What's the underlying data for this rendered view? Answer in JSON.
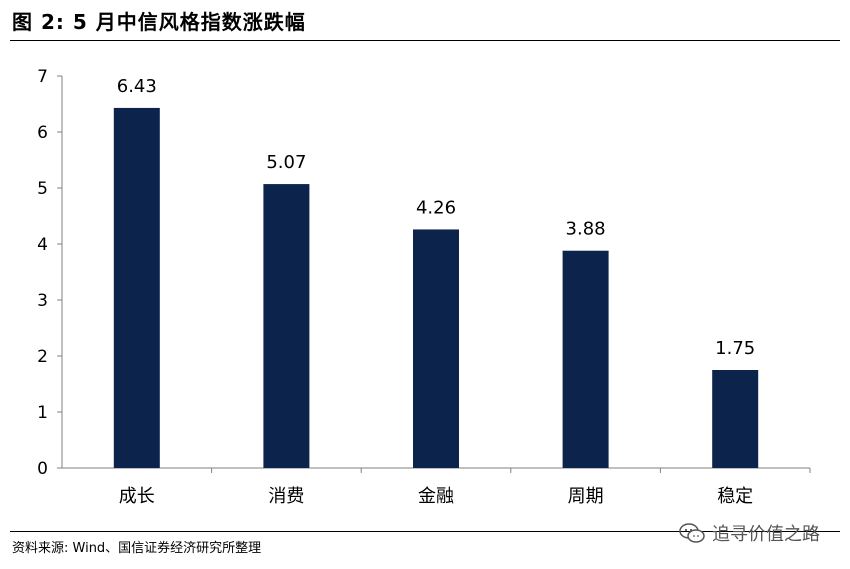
{
  "header": {
    "title": "图 2: 5 月中信风格指数涨跌幅"
  },
  "footer": {
    "source": "资料来源: Wind、国信证券经济研究所整理"
  },
  "watermark": {
    "text": "追寻价值之路",
    "icon": "wechat-icon"
  },
  "colors": {
    "bar": "#0c234b",
    "axis": "#808080"
  },
  "chart_data": {
    "type": "bar",
    "title": "",
    "xlabel": "",
    "ylabel": "",
    "categories": [
      "成长",
      "消费",
      "金融",
      "周期",
      "稳定"
    ],
    "values": [
      6.43,
      5.07,
      4.26,
      3.88,
      1.75
    ],
    "data_labels": [
      "6.43",
      "5.07",
      "4.26",
      "3.88",
      "1.75"
    ],
    "y_ticks": [
      "0",
      "1",
      "2",
      "3",
      "4",
      "5",
      "6",
      "7"
    ],
    "ylim": [
      0,
      7
    ],
    "grid": false,
    "legend": "none"
  }
}
